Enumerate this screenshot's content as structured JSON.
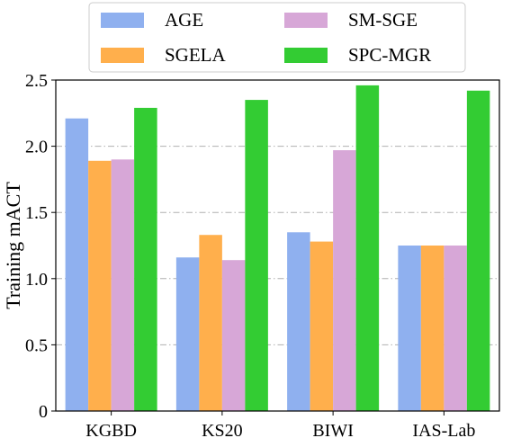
{
  "chart_data": {
    "type": "bar",
    "categories": [
      "KGBD",
      "KS20",
      "BIWI",
      "IAS-Lab"
    ],
    "series": [
      {
        "name": "AGE",
        "color": "#8fb0ef",
        "values": [
          2.21,
          1.16,
          1.35,
          1.25
        ]
      },
      {
        "name": "SGELA",
        "color": "#ffaf4c",
        "values": [
          1.89,
          1.33,
          1.28,
          1.25
        ]
      },
      {
        "name": "SM-SGE",
        "color": "#d7a7d7",
        "values": [
          1.9,
          1.14,
          1.97,
          1.25
        ]
      },
      {
        "name": "SPC-MGR",
        "color": "#33cc33",
        "values": [
          2.29,
          2.35,
          2.46,
          2.42
        ]
      }
    ],
    "title": "",
    "xlabel": "",
    "ylabel": "Training mACT",
    "ylim": [
      0,
      2.5
    ],
    "yticks": [
      "0",
      "0.5",
      "1.0",
      "1.5",
      "2.0",
      "2.5"
    ],
    "grid": "horizontal dash-dot",
    "legend_position": "top"
  }
}
